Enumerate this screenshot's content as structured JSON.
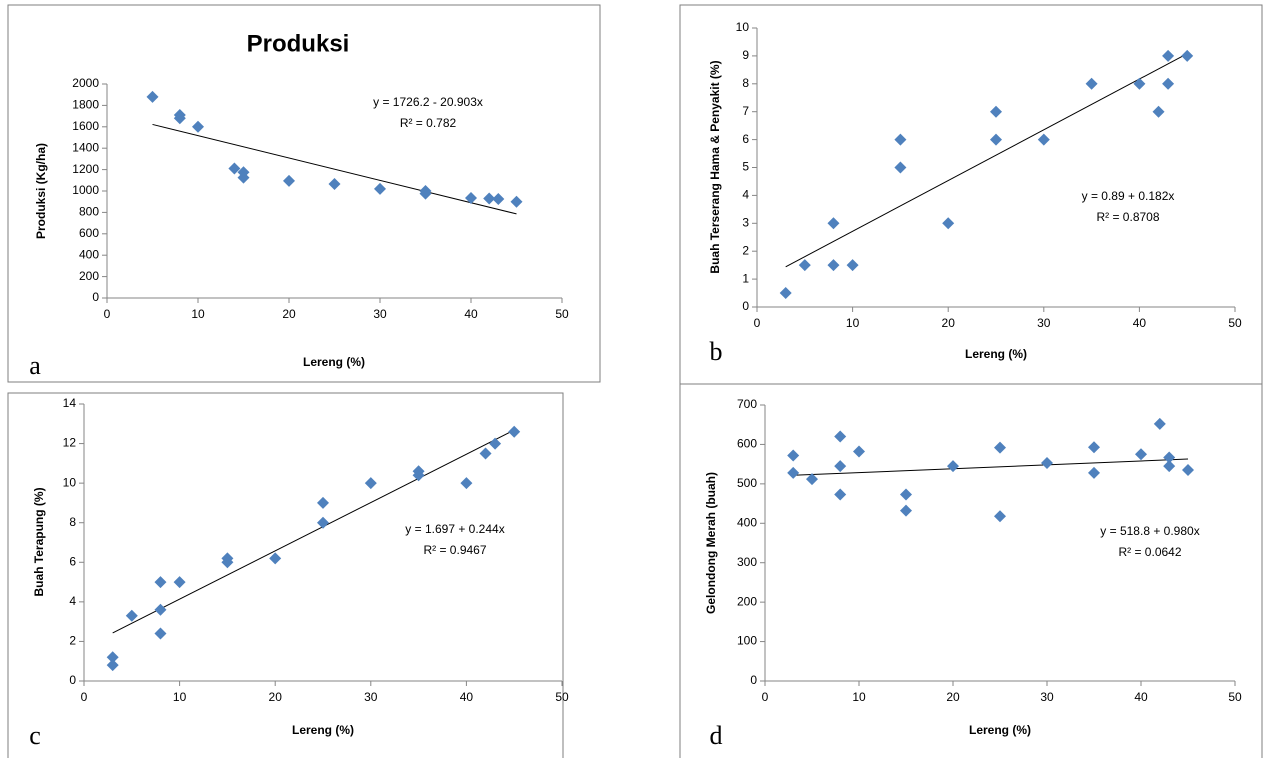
{
  "chart_data": [
    {
      "type": "scatter",
      "title": "Produksi",
      "xlabel": "Lereng (%)",
      "ylabel": "Produksi (Kg/ha)",
      "panel_label": "a",
      "x": [
        5,
        8,
        8,
        10,
        14,
        15,
        15,
        20,
        25,
        30,
        35,
        35,
        40,
        42,
        43,
        45
      ],
      "values": [
        1880,
        1710,
        1680,
        1600,
        1210,
        1175,
        1125,
        1095,
        1065,
        1020,
        1000,
        975,
        935,
        930,
        925,
        900
      ],
      "color": "#4f81bd",
      "trendline": {
        "x": [
          5,
          45
        ],
        "values": [
          1622,
          786
        ],
        "color": "#000000"
      },
      "annotations": [
        "y = 1726.2 - 20.903x",
        "R² = 0.782"
      ],
      "xlim": [
        0,
        50
      ],
      "xticks": [
        0,
        10,
        20,
        30,
        40,
        50
      ],
      "ylim": [
        0,
        2000
      ],
      "yticks": [
        0,
        200,
        400,
        600,
        800,
        1000,
        1200,
        1400,
        1600,
        1800,
        2000
      ]
    },
    {
      "type": "scatter",
      "xlabel": "Lereng (%)",
      "ylabel": "Buah Terserang Hama & Penyakit (%)",
      "panel_label": "b",
      "x": [
        3,
        5,
        8,
        8,
        10,
        15,
        15,
        20,
        25,
        25,
        30,
        35,
        40,
        42,
        43,
        43,
        45
      ],
      "values": [
        0.5,
        1.5,
        3,
        1.5,
        1.5,
        6,
        5,
        3,
        7,
        6,
        6,
        8,
        8,
        7,
        9,
        8,
        9
      ],
      "color": "#4f81bd",
      "trendline": {
        "x": [
          3,
          45
        ],
        "values": [
          1.44,
          9.08
        ],
        "color": "#000000"
      },
      "annotations": [
        "y = 0.89 + 0.182x",
        "R² = 0.8708"
      ],
      "xlim": [
        0,
        50
      ],
      "xticks": [
        0,
        10,
        20,
        30,
        40,
        50
      ],
      "ylim": [
        0,
        10
      ],
      "yticks": [
        0,
        1,
        2,
        3,
        4,
        5,
        6,
        7,
        8,
        9,
        10
      ]
    },
    {
      "type": "scatter",
      "xlabel": "Lereng (%)",
      "ylabel": "Buah Terapung (%)",
      "panel_label": "c",
      "x": [
        3,
        3,
        5,
        8,
        8,
        8,
        10,
        15,
        15,
        20,
        25,
        25,
        30,
        35,
        35,
        40,
        42,
        43,
        45
      ],
      "values": [
        1.2,
        0.8,
        3.3,
        5,
        3.6,
        2.4,
        5,
        6.2,
        6,
        6.2,
        9,
        8,
        10,
        10.6,
        10.4,
        10,
        11.5,
        12,
        12.6
      ],
      "color": "#4f81bd",
      "trendline": {
        "x": [
          3,
          45
        ],
        "values": [
          2.43,
          12.68
        ],
        "color": "#000000"
      },
      "annotations": [
        "y = 1.697 + 0.244x",
        "R² = 0.9467"
      ],
      "xlim": [
        0,
        50
      ],
      "xticks": [
        0,
        10,
        20,
        30,
        40,
        50
      ],
      "ylim": [
        0,
        14
      ],
      "yticks": [
        0,
        2,
        4,
        6,
        8,
        10,
        12,
        14
      ]
    },
    {
      "type": "scatter",
      "xlabel": "Lereng (%)",
      "ylabel": "Gelondong Merah (buah)",
      "panel_label": "d",
      "x": [
        3,
        3,
        5,
        8,
        8,
        8,
        10,
        15,
        15,
        20,
        25,
        25,
        30,
        35,
        35,
        40,
        42,
        43,
        43,
        45
      ],
      "values": [
        572,
        528,
        512,
        620,
        545,
        473,
        582,
        473,
        432,
        545,
        592,
        418,
        553,
        593,
        528,
        575,
        652,
        567,
        545,
        535
      ],
      "color": "#4f81bd",
      "trendline": {
        "x": [
          3,
          45
        ],
        "values": [
          521.7,
          562.9
        ],
        "color": "#000000"
      },
      "annotations": [
        "y = 518.8 + 0.980x",
        "R² = 0.0642"
      ],
      "xlim": [
        0,
        50
      ],
      "xticks": [
        0,
        10,
        20,
        30,
        40,
        50
      ],
      "ylim": [
        0,
        700
      ],
      "yticks": [
        0,
        100,
        200,
        300,
        400,
        500,
        600,
        700
      ]
    }
  ]
}
